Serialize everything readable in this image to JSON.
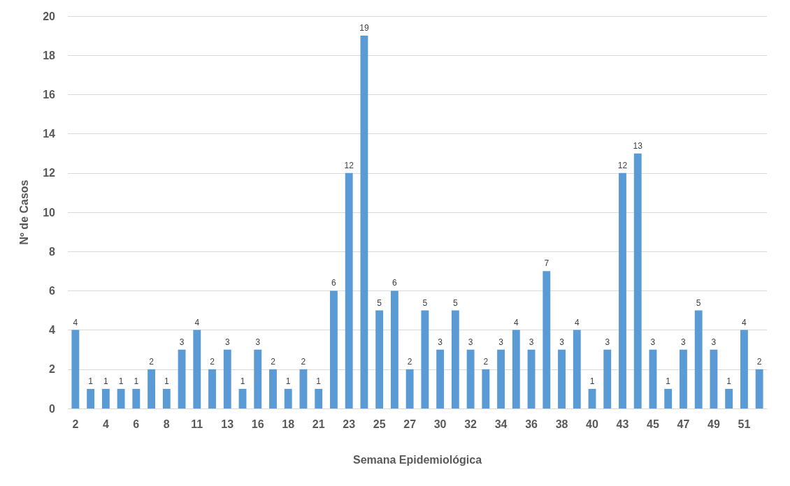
{
  "chart_data": {
    "type": "bar",
    "xlabel": "Semana Epidemiológica",
    "ylabel": "Nº de Casos",
    "categories": [
      "2",
      null,
      "4",
      null,
      "6",
      null,
      "8",
      null,
      "11",
      null,
      "13",
      null,
      "16",
      null,
      "18",
      null,
      "21",
      null,
      "23",
      null,
      "25",
      null,
      "27",
      null,
      "30",
      null,
      "32",
      null,
      "34",
      null,
      "36",
      null,
      "38",
      null,
      "40",
      null,
      "43",
      null,
      "45",
      null,
      "47",
      null,
      "49",
      null,
      "51",
      null
    ],
    "values": [
      4,
      1,
      1,
      1,
      1,
      2,
      1,
      3,
      4,
      2,
      3,
      1,
      3,
      2,
      1,
      2,
      1,
      6,
      12,
      19,
      5,
      6,
      2,
      5,
      3,
      5,
      3,
      2,
      3,
      4,
      3,
      7,
      3,
      4,
      1,
      3,
      12,
      13,
      3,
      1,
      3,
      5,
      3,
      1,
      4,
      2
    ],
    "color": "#5b9bd5",
    "ylim": [
      0,
      20
    ],
    "yticks": [
      0,
      2,
      4,
      6,
      8,
      10,
      12,
      14,
      16,
      18,
      20
    ],
    "grid": "y",
    "data_labels": true
  }
}
